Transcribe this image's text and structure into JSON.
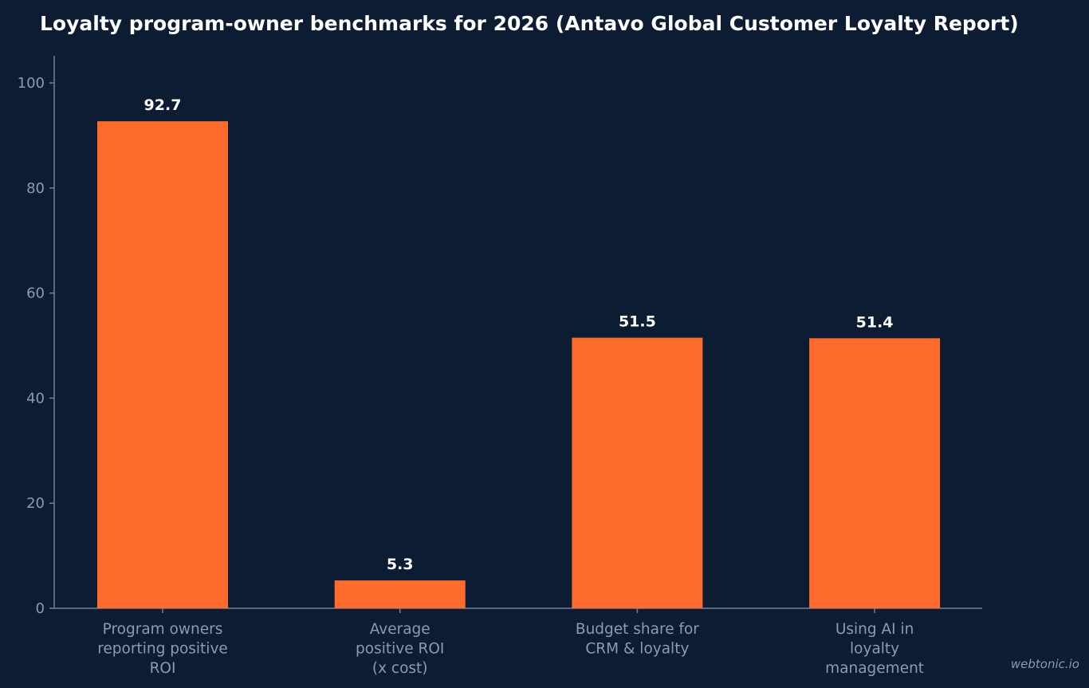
{
  "watermark": "webtonic.io",
  "colors": {
    "background": "#0b1c33",
    "bar": "#ff6b2c",
    "axis": "#6f819b",
    "tick_text": "#8a9bb3",
    "title_text": "#ffffff"
  },
  "chart_data": {
    "type": "bar",
    "title": "Loyalty program-owner benchmarks for 2026 (Antavo Global Customer Loyalty Report)",
    "xlabel": "",
    "ylabel": "",
    "ylim": [
      0,
      105
    ],
    "yticks": [
      0,
      20,
      40,
      60,
      80,
      100
    ],
    "grid": false,
    "categories": [
      [
        "Program owners",
        "reporting positive",
        "ROI"
      ],
      [
        "Average",
        "positive ROI",
        "(x cost)"
      ],
      [
        "Budget share for",
        "CRM & loyalty"
      ],
      [
        "Using AI in",
        "loyalty",
        "management"
      ]
    ],
    "values": [
      92.7,
      5.3,
      51.5,
      51.4
    ],
    "value_labels": [
      "92.7",
      "5.3",
      "51.5",
      "51.4"
    ]
  }
}
